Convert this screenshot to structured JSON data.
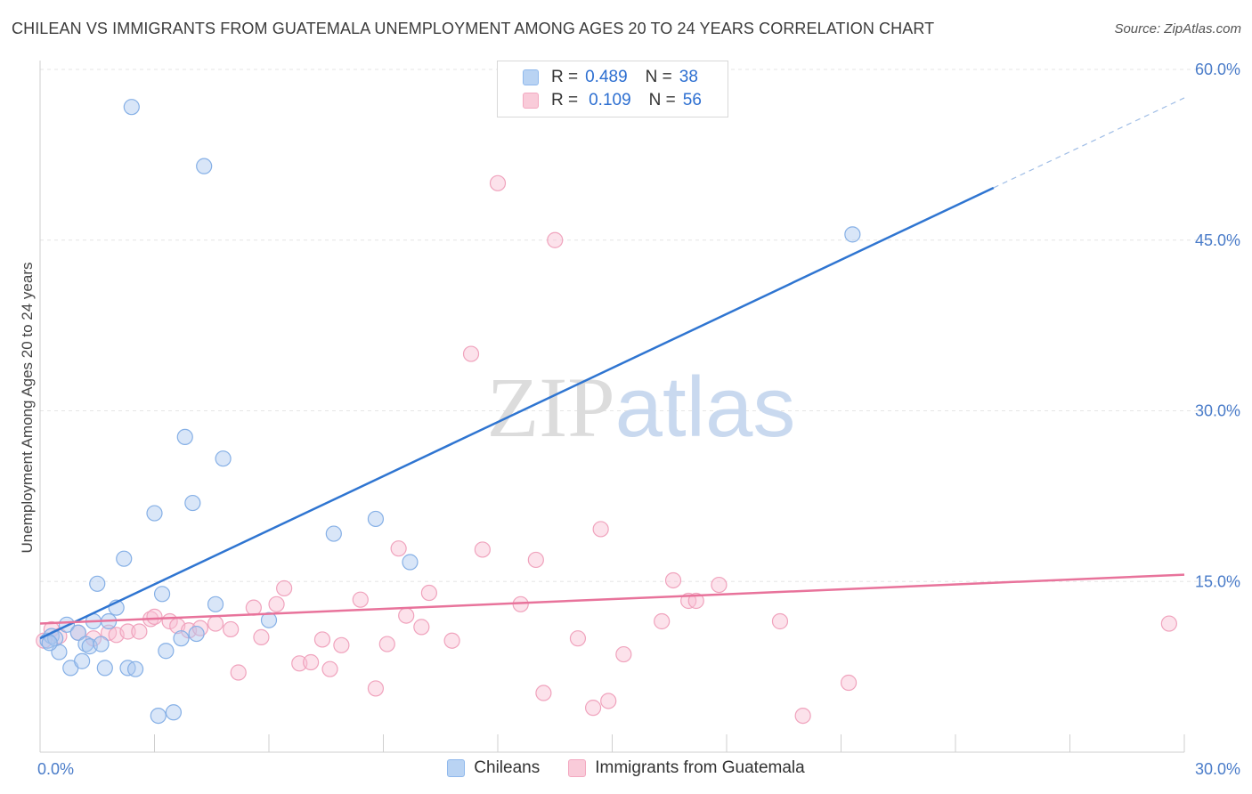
{
  "chart_data": {
    "type": "scatter",
    "title": "CHILEAN VS IMMIGRANTS FROM GUATEMALA UNEMPLOYMENT AMONG AGES 20 TO 24 YEARS CORRELATION CHART",
    "source": "Source: ZipAtlas.com",
    "ylabel": "Unemployment Among Ages 20 to 24 years",
    "xlim": [
      0,
      30
    ],
    "ylim": [
      0,
      60
    ],
    "x_tick_labels": [
      "0.0%",
      "30.0%"
    ],
    "y_ticks": [
      15,
      30,
      45,
      60
    ],
    "y_tick_labels": [
      "15.0%",
      "30.0%",
      "45.0%",
      "60.0%"
    ],
    "watermark": "ZIPatlas",
    "colors": {
      "chileans": "#8fb8ec",
      "guatemala": "#f3a8c0",
      "blue_line": "#2f75d1",
      "pink_line": "#e8739b"
    },
    "series": [
      {
        "name": "Chileans",
        "R": "0.489",
        "N": "38",
        "trend": {
          "x0": 0,
          "y0": 10.0,
          "x1": 25,
          "y1": 49.6,
          "dash_to_x": 30,
          "dash_to_y": 57.5
        },
        "points": [
          [
            0.2,
            9.8
          ],
          [
            0.3,
            10.2
          ],
          [
            0.4,
            10.0
          ],
          [
            0.5,
            8.8
          ],
          [
            0.7,
            11.2
          ],
          [
            0.8,
            7.4
          ],
          [
            1.0,
            10.5
          ],
          [
            1.1,
            8.0
          ],
          [
            1.2,
            9.5
          ],
          [
            1.3,
            9.3
          ],
          [
            1.4,
            11.5
          ],
          [
            1.5,
            14.8
          ],
          [
            1.6,
            9.5
          ],
          [
            1.7,
            7.4
          ],
          [
            1.8,
            11.5
          ],
          [
            2.0,
            12.7
          ],
          [
            2.2,
            17.0
          ],
          [
            2.3,
            7.4
          ],
          [
            2.5,
            7.3
          ],
          [
            2.4,
            56.7
          ],
          [
            3.0,
            21.0
          ],
          [
            3.1,
            3.2
          ],
          [
            3.2,
            13.9
          ],
          [
            3.3,
            8.9
          ],
          [
            3.5,
            3.5
          ],
          [
            3.7,
            10.0
          ],
          [
            3.8,
            27.7
          ],
          [
            4.0,
            21.9
          ],
          [
            4.1,
            10.4
          ],
          [
            4.3,
            51.5
          ],
          [
            4.6,
            13.0
          ],
          [
            4.8,
            25.8
          ],
          [
            6.0,
            11.6
          ],
          [
            7.7,
            19.2
          ],
          [
            8.8,
            20.5
          ],
          [
            9.7,
            16.7
          ],
          [
            21.3,
            45.5
          ],
          [
            0.25,
            9.6
          ]
        ]
      },
      {
        "name": "Immigrants from Guatemala",
        "R": "0.109",
        "N": "56",
        "trend": {
          "x0": 0,
          "y0": 11.3,
          "x1": 30,
          "y1": 15.6
        },
        "points": [
          [
            0.1,
            9.8
          ],
          [
            0.3,
            10.8
          ],
          [
            0.5,
            10.2
          ],
          [
            1.0,
            10.5
          ],
          [
            1.4,
            10.0
          ],
          [
            1.8,
            10.5
          ],
          [
            2.0,
            10.3
          ],
          [
            2.3,
            10.6
          ],
          [
            2.6,
            10.6
          ],
          [
            2.9,
            11.7
          ],
          [
            3.0,
            11.9
          ],
          [
            3.4,
            11.5
          ],
          [
            3.6,
            11.1
          ],
          [
            3.9,
            10.7
          ],
          [
            4.2,
            10.9
          ],
          [
            4.6,
            11.3
          ],
          [
            5.0,
            10.8
          ],
          [
            5.2,
            7.0
          ],
          [
            5.6,
            12.7
          ],
          [
            5.8,
            10.1
          ],
          [
            6.2,
            13.0
          ],
          [
            6.4,
            14.4
          ],
          [
            6.8,
            7.8
          ],
          [
            7.1,
            7.9
          ],
          [
            7.4,
            9.9
          ],
          [
            7.6,
            7.3
          ],
          [
            7.9,
            9.4
          ],
          [
            8.4,
            13.4
          ],
          [
            8.8,
            5.6
          ],
          [
            9.1,
            9.5
          ],
          [
            9.4,
            17.9
          ],
          [
            9.6,
            12.0
          ],
          [
            10.0,
            11.0
          ],
          [
            10.2,
            14.0
          ],
          [
            10.8,
            9.8
          ],
          [
            11.3,
            35.0
          ],
          [
            11.6,
            17.8
          ],
          [
            12.0,
            50.0
          ],
          [
            12.6,
            13.0
          ],
          [
            13.0,
            16.9
          ],
          [
            13.2,
            5.2
          ],
          [
            13.5,
            45.0
          ],
          [
            14.1,
            10.0
          ],
          [
            14.5,
            3.9
          ],
          [
            14.7,
            19.6
          ],
          [
            14.9,
            4.5
          ],
          [
            15.3,
            8.6
          ],
          [
            16.3,
            11.5
          ],
          [
            16.6,
            15.1
          ],
          [
            17.0,
            13.3
          ],
          [
            17.2,
            13.3
          ],
          [
            17.8,
            14.7
          ],
          [
            19.4,
            11.5
          ],
          [
            20.0,
            3.2
          ],
          [
            21.2,
            6.1
          ],
          [
            29.6,
            11.3
          ]
        ]
      }
    ]
  }
}
